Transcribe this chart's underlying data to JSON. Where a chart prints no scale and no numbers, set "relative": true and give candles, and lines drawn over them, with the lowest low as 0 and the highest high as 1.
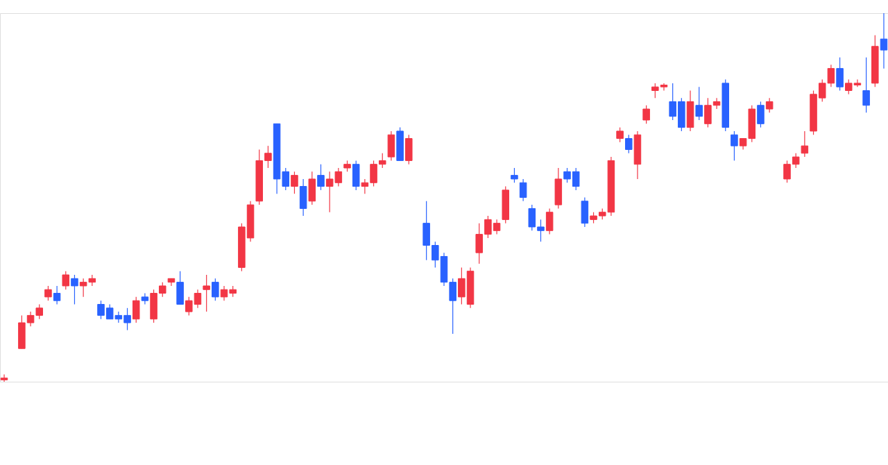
{
  "chart_data": {
    "type": "candlestick",
    "relative": true,
    "categories": [
      null,
      null,
      null,
      null,
      null,
      null,
      null,
      null,
      null,
      null,
      null,
      null,
      null,
      null,
      null,
      null,
      null,
      null,
      null,
      null,
      null,
      null,
      null,
      null,
      null,
      null,
      null,
      null,
      null,
      null,
      null,
      null,
      null,
      null,
      null,
      null,
      null,
      null,
      null,
      null,
      null,
      null,
      null,
      null,
      null,
      null,
      null,
      null,
      null,
      null,
      null,
      null,
      null,
      null,
      null,
      null,
      null,
      null,
      null,
      null,
      null,
      null,
      null,
      null,
      null,
      null,
      null,
      null,
      null,
      null,
      null,
      null,
      null,
      null,
      null,
      null,
      null,
      null,
      null,
      null,
      null,
      null,
      null,
      null,
      null,
      null,
      null,
      null,
      null,
      null,
      null,
      null,
      null,
      null,
      null,
      null,
      null,
      null,
      null,
      null,
      null
    ],
    "ohlc": [
      [
        0.005,
        0.02,
        0,
        0.01
      ],
      null,
      [
        0.09,
        0.18,
        0.09,
        0.16
      ],
      [
        0.16,
        0.19,
        0.15,
        0.18
      ],
      [
        0.18,
        0.21,
        0.17,
        0.2
      ],
      [
        0.23,
        0.26,
        0.22,
        0.25
      ],
      [
        0.24,
        0.26,
        0.21,
        0.22
      ],
      [
        0.26,
        0.3,
        0.25,
        0.29
      ],
      [
        0.28,
        0.29,
        0.21,
        0.26
      ],
      [
        0.26,
        0.28,
        0.23,
        0.27
      ],
      [
        0.27,
        0.29,
        0.26,
        0.28
      ],
      [
        0.21,
        0.22,
        0.17,
        0.18
      ],
      [
        0.2,
        0.21,
        0.17,
        0.17
      ],
      [
        0.18,
        0.19,
        0.16,
        0.17
      ],
      [
        0.18,
        0.2,
        0.14,
        0.16
      ],
      [
        0.17,
        0.23,
        0.16,
        0.22
      ],
      [
        0.23,
        0.24,
        0.21,
        0.22
      ],
      [
        0.17,
        0.25,
        0.16,
        0.24
      ],
      [
        0.24,
        0.27,
        0.23,
        0.26
      ],
      [
        0.27,
        0.28,
        0.26,
        0.28
      ],
      [
        0.27,
        0.3,
        0.21,
        0.21
      ],
      [
        0.19,
        0.23,
        0.18,
        0.22
      ],
      [
        0.21,
        0.25,
        0.2,
        0.24
      ],
      [
        0.25,
        0.29,
        0.19,
        0.26
      ],
      [
        0.27,
        0.28,
        0.22,
        0.23
      ],
      [
        0.23,
        0.26,
        0.22,
        0.25
      ],
      [
        0.24,
        0.26,
        0.23,
        0.25
      ],
      [
        0.31,
        0.43,
        0.3,
        0.42
      ],
      [
        0.39,
        0.49,
        0.38,
        0.48
      ],
      [
        0.49,
        0.63,
        0.48,
        0.6
      ],
      [
        0.6,
        0.64,
        0.58,
        0.62
      ],
      [
        0.7,
        0.7,
        0.51,
        0.55
      ],
      [
        0.57,
        0.58,
        0.52,
        0.53
      ],
      [
        0.53,
        0.57,
        0.51,
        0.56
      ],
      [
        0.53,
        0.55,
        0.45,
        0.47
      ],
      [
        0.49,
        0.57,
        0.48,
        0.55
      ],
      [
        0.56,
        0.59,
        0.52,
        0.53
      ],
      [
        0.53,
        0.57,
        0.46,
        0.55
      ],
      [
        0.54,
        0.58,
        0.53,
        0.57
      ],
      [
        0.58,
        0.6,
        0.57,
        0.59
      ],
      [
        0.59,
        0.6,
        0.52,
        0.53
      ],
      [
        0.53,
        0.55,
        0.51,
        0.54
      ],
      [
        0.54,
        0.6,
        0.53,
        0.59
      ],
      [
        0.59,
        0.62,
        0.58,
        0.6
      ],
      [
        0.61,
        0.68,
        0.6,
        0.67
      ],
      [
        0.68,
        0.69,
        0.6,
        0.6
      ],
      [
        0.6,
        0.67,
        0.59,
        0.66
      ],
      null,
      [
        0.43,
        0.49,
        0.33,
        0.37
      ],
      [
        0.37,
        0.38,
        0.31,
        0.33
      ],
      [
        0.34,
        0.35,
        0.26,
        0.27
      ],
      [
        0.27,
        0.28,
        0.13,
        0.22
      ],
      [
        0.23,
        0.31,
        0.21,
        0.28
      ],
      [
        0.21,
        0.31,
        0.2,
        0.3
      ],
      [
        0.35,
        0.43,
        0.32,
        0.4
      ],
      [
        0.4,
        0.45,
        0.39,
        0.44
      ],
      [
        0.41,
        0.44,
        0.4,
        0.43
      ],
      [
        0.44,
        0.53,
        0.43,
        0.52
      ],
      [
        0.56,
        0.58,
        0.54,
        0.55
      ],
      [
        0.54,
        0.55,
        0.49,
        0.5
      ],
      [
        0.47,
        0.48,
        0.41,
        0.42
      ],
      [
        0.42,
        0.44,
        0.38,
        0.41
      ],
      [
        0.41,
        0.47,
        0.4,
        0.46
      ],
      [
        0.48,
        0.58,
        0.47,
        0.55
      ],
      [
        0.57,
        0.58,
        0.54,
        0.55
      ],
      [
        0.57,
        0.58,
        0.52,
        0.53
      ],
      [
        0.49,
        0.5,
        0.42,
        0.43
      ],
      [
        0.44,
        0.46,
        0.43,
        0.45
      ],
      [
        0.45,
        0.47,
        0.44,
        0.46
      ],
      [
        0.46,
        0.61,
        0.45,
        0.6
      ],
      [
        0.66,
        0.69,
        0.65,
        0.68
      ],
      [
        0.66,
        0.67,
        0.62,
        0.63
      ],
      [
        0.59,
        0.68,
        0.55,
        0.67
      ],
      [
        0.71,
        0.75,
        0.7,
        0.74
      ],
      [
        0.79,
        0.81,
        0.77,
        0.8
      ],
      [
        0.8,
        0.81,
        0.79,
        0.805
      ],
      [
        0.76,
        0.81,
        0.71,
        0.72
      ],
      [
        0.76,
        0.77,
        0.68,
        0.69
      ],
      [
        0.69,
        0.79,
        0.68,
        0.76
      ],
      [
        0.75,
        0.8,
        0.71,
        0.72
      ],
      [
        0.7,
        0.77,
        0.69,
        0.75
      ],
      [
        0.75,
        0.77,
        0.74,
        0.76
      ],
      [
        0.81,
        0.82,
        0.68,
        0.69
      ],
      [
        0.67,
        0.68,
        0.6,
        0.64
      ],
      [
        0.64,
        0.66,
        0.63,
        0.66
      ],
      [
        0.66,
        0.75,
        0.65,
        0.74
      ],
      [
        0.75,
        0.76,
        0.69,
        0.7
      ],
      [
        0.74,
        0.77,
        0.73,
        0.76
      ],
      null,
      [
        0.55,
        0.6,
        0.54,
        0.59
      ],
      [
        0.59,
        0.62,
        0.58,
        0.61
      ],
      [
        0.62,
        0.68,
        0.61,
        0.64
      ],
      [
        0.68,
        0.79,
        0.67,
        0.78
      ],
      [
        0.77,
        0.82,
        0.76,
        0.81
      ],
      [
        0.81,
        0.86,
        0.8,
        0.85
      ],
      [
        0.85,
        0.88,
        0.79,
        0.8
      ],
      [
        0.79,
        0.82,
        0.78,
        0.81
      ],
      [
        0.805,
        0.82,
        0.8,
        0.81
      ],
      [
        0.79,
        0.88,
        0.73,
        0.75
      ],
      [
        0.81,
        0.94,
        0.8,
        0.91
      ],
      [
        0.93,
        1,
        0.85,
        0.9
      ]
    ],
    "colors": [
      "#f23645",
      null,
      "#f23645",
      "#f23645",
      "#f23645",
      "#f23645",
      "#2962ff",
      "#f23645",
      "#2962ff",
      "#f23645",
      "#f23645",
      "#2962ff",
      "#2962ff",
      "#2962ff",
      "#2962ff",
      "#f23645",
      "#2962ff",
      "#f23645",
      "#f23645",
      "#f23645",
      "#2962ff",
      "#f23645",
      "#f23645",
      "#f23645",
      "#2962ff",
      "#f23645",
      "#f23645",
      "#f23645",
      "#f23645",
      "#f23645",
      "#f23645",
      "#2962ff",
      "#2962ff",
      "#f23645",
      "#2962ff",
      "#f23645",
      "#2962ff",
      "#f23645",
      "#f23645",
      "#f23645",
      "#2962ff",
      "#f23645",
      "#f23645",
      "#f23645",
      "#f23645",
      "#2962ff",
      "#f23645",
      null,
      "#2962ff",
      "#2962ff",
      "#2962ff",
      "#2962ff",
      "#f23645",
      "#f23645",
      "#f23645",
      "#f23645",
      "#f23645",
      "#f23645",
      "#2962ff",
      "#2962ff",
      "#2962ff",
      "#2962ff",
      "#f23645",
      "#f23645",
      "#2962ff",
      "#2962ff",
      "#2962ff",
      "#f23645",
      "#f23645",
      "#f23645",
      "#f23645",
      "#2962ff",
      "#f23645",
      "#f23645",
      "#f23645",
      "#f23645",
      "#2962ff",
      "#2962ff",
      "#f23645",
      "#2962ff",
      "#f23645",
      "#f23645",
      "#2962ff",
      "#2962ff",
      "#f23645",
      "#f23645",
      "#2962ff",
      "#f23645",
      null,
      "#f23645",
      "#f23645",
      "#f23645",
      "#f23645",
      "#f23645",
      "#f23645",
      "#2962ff",
      "#f23645",
      "#f23645",
      "#2962ff",
      "#f23645",
      "#2962ff"
    ]
  }
}
